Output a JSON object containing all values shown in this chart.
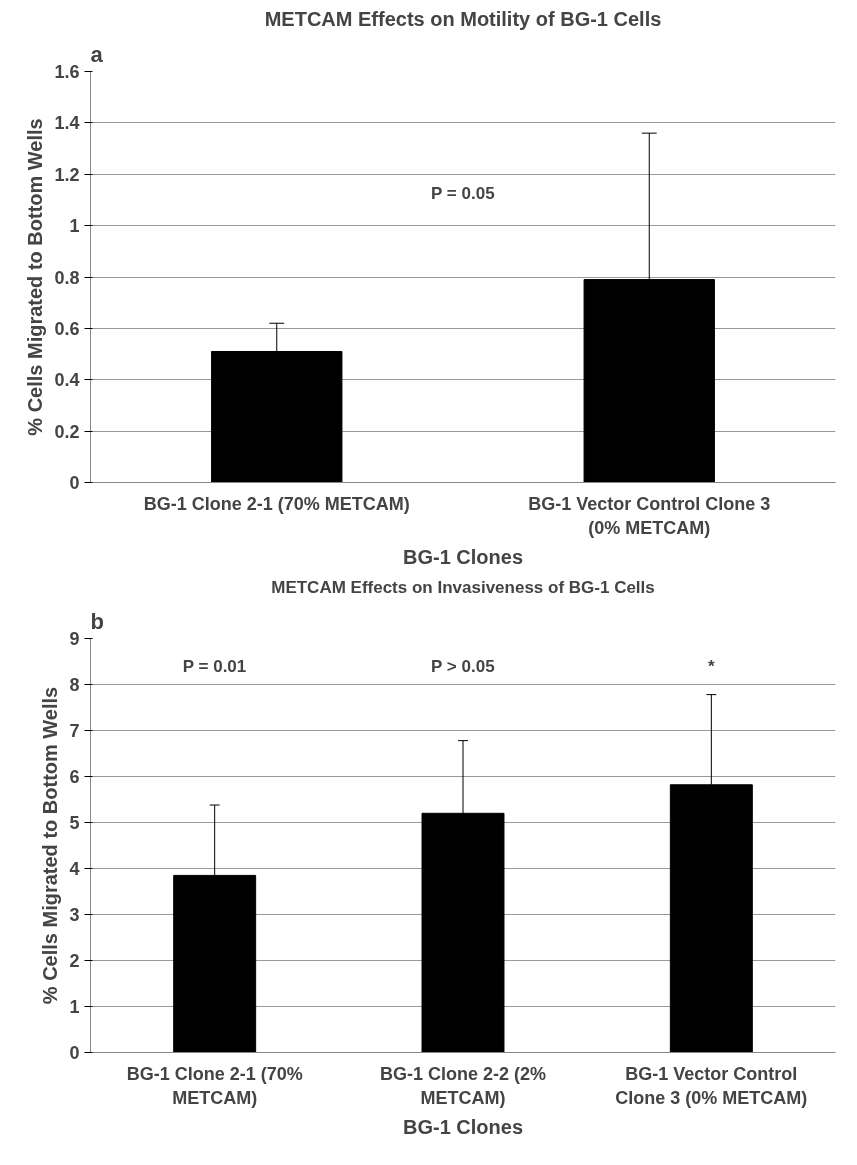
{
  "chart_data": [
    {
      "type": "bar",
      "title": "METCAM Effects on Motility of BG-1 Cells",
      "xlabel": "BG-1 Clones",
      "ylabel": "% Cells Migrated to Bottom Wells",
      "categories": [
        "BG-1 Clone 2-1 (70% METCAM)",
        "BG-1 Vector Control Clone 3 (0% METCAM)"
      ],
      "values": [
        0.51,
        0.79
      ],
      "errors": [
        [
          0.51,
          0.62
        ],
        [
          0.79,
          1.36
        ]
      ],
      "color": "#000000",
      "ylim": [
        0,
        1.6
      ],
      "yticks": [
        0,
        0.2,
        0.4,
        0.6,
        0.8,
        1,
        1.2,
        1.4,
        1.6
      ],
      "grid": "y",
      "annotations": [
        "a",
        "P = 0.05"
      ]
    },
    {
      "type": "bar",
      "title": "METCAM Effects on Invasiveness of BG-1 Cells",
      "xlabel": "BG-1 Clones",
      "ylabel": "% Cells Migrated to Bottom Wells",
      "categories": [
        "BG-1 Clone 2-1 (70% METCAM)",
        "BG-1 Clone 2-2 (2% METCAM)",
        "BG-1 Vector Control Clone 3 (0% METCAM)"
      ],
      "values": [
        3.85,
        5.2,
        5.82
      ],
      "errors": [
        [
          3.85,
          5.38
        ],
        [
          5.2,
          6.78
        ],
        [
          5.82,
          7.78
        ]
      ],
      "color": "#000000",
      "ylim": [
        0,
        9
      ],
      "yticks": [
        0,
        1,
        2,
        3,
        4,
        5,
        6,
        7,
        8,
        9
      ],
      "grid": "y",
      "annotations": [
        "b",
        "P = 0.01",
        "P > 0.05",
        "*"
      ]
    }
  ]
}
